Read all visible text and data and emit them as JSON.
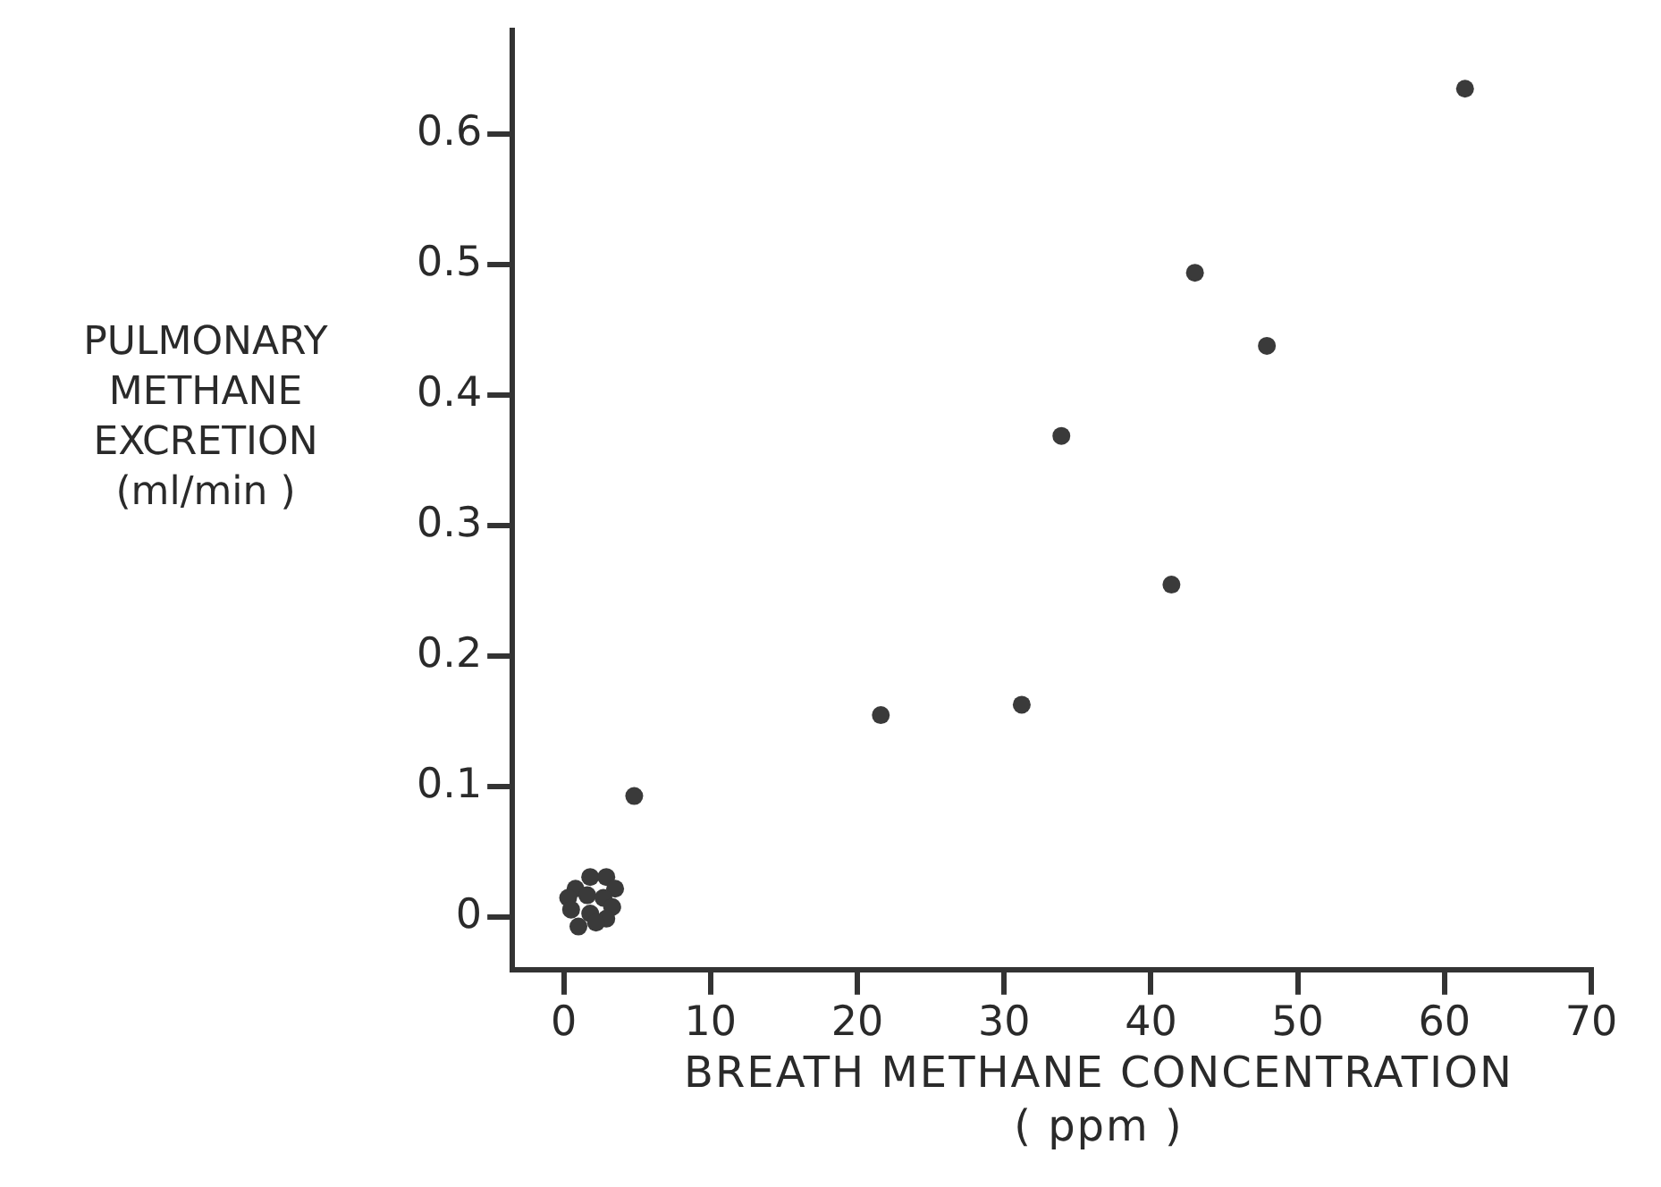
{
  "chart_data": {
    "type": "scatter",
    "xlabel": "BREATH METHANE CONCENTRATION\n( ppm )",
    "ylabel": "PULMONARY\nMETHANE\nEXCRETION\n(ml/min )",
    "xlim": [
      -3.5,
      70
    ],
    "xticks": [
      0,
      10,
      20,
      30,
      40,
      50,
      60,
      70
    ],
    "ylim": [
      -0.04,
      0.68
    ],
    "yticks": [
      0,
      0.1,
      0.2,
      0.3,
      0.4,
      0.5,
      0.6
    ],
    "grid": false,
    "legend": false,
    "marker": "circle",
    "series": [
      {
        "color": "#3a3a3a",
        "x": [
          4.8,
          21.6,
          31.2,
          33.9,
          41.4,
          43.0,
          47.9,
          61.4,
          1.8,
          2.9,
          0.8,
          3.5,
          0.3,
          1.6,
          2.7,
          3.3,
          0.5,
          1.8,
          2.9,
          1.0,
          2.2
        ],
        "values": [
          0.093,
          0.155,
          0.163,
          0.369,
          0.255,
          0.494,
          0.438,
          0.635,
          0.031,
          0.031,
          0.022,
          0.022,
          0.015,
          0.017,
          0.015,
          0.008,
          0.006,
          0.003,
          -0.001,
          -0.007,
          -0.004
        ]
      }
    ]
  }
}
